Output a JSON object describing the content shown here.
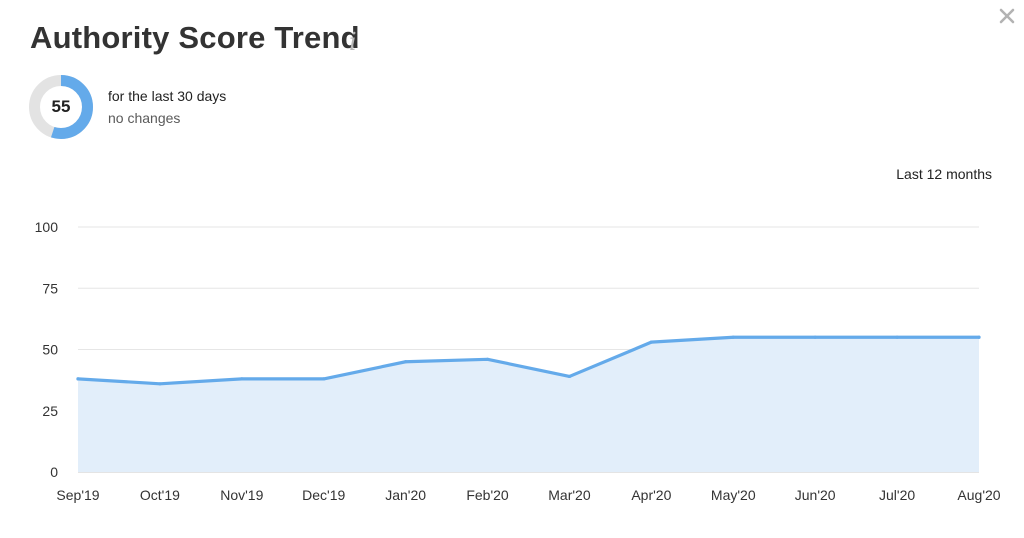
{
  "header": {
    "title": "Authority Score Trend",
    "info_icon": "info-icon",
    "close_icon": "close-icon"
  },
  "score": {
    "value": "55",
    "fraction": 0.55,
    "period_text": "for the last 30 days",
    "change_text": "no changes",
    "colors": {
      "fill": "#64aaea",
      "track": "#e3e3e3"
    }
  },
  "range_label": "Last 12 months",
  "chart_data": {
    "type": "area",
    "title": "",
    "xlabel": "",
    "ylabel": "",
    "categories": [
      "Sep'19",
      "Oct'19",
      "Nov'19",
      "Dec'19",
      "Jan'20",
      "Feb'20",
      "Mar'20",
      "Apr'20",
      "May'20",
      "Jun'20",
      "Jul'20",
      "Aug'20"
    ],
    "series": [
      {
        "values": [
          38,
          36,
          38,
          38,
          45,
          46,
          39,
          53,
          55,
          55,
          55,
          55
        ],
        "color": "#64aaea",
        "fill": "#e2eefa"
      }
    ],
    "ylim": [
      0,
      100
    ],
    "yticks": [
      "0",
      "25",
      "50",
      "75",
      "100"
    ],
    "grid": true,
    "legend": "none"
  }
}
